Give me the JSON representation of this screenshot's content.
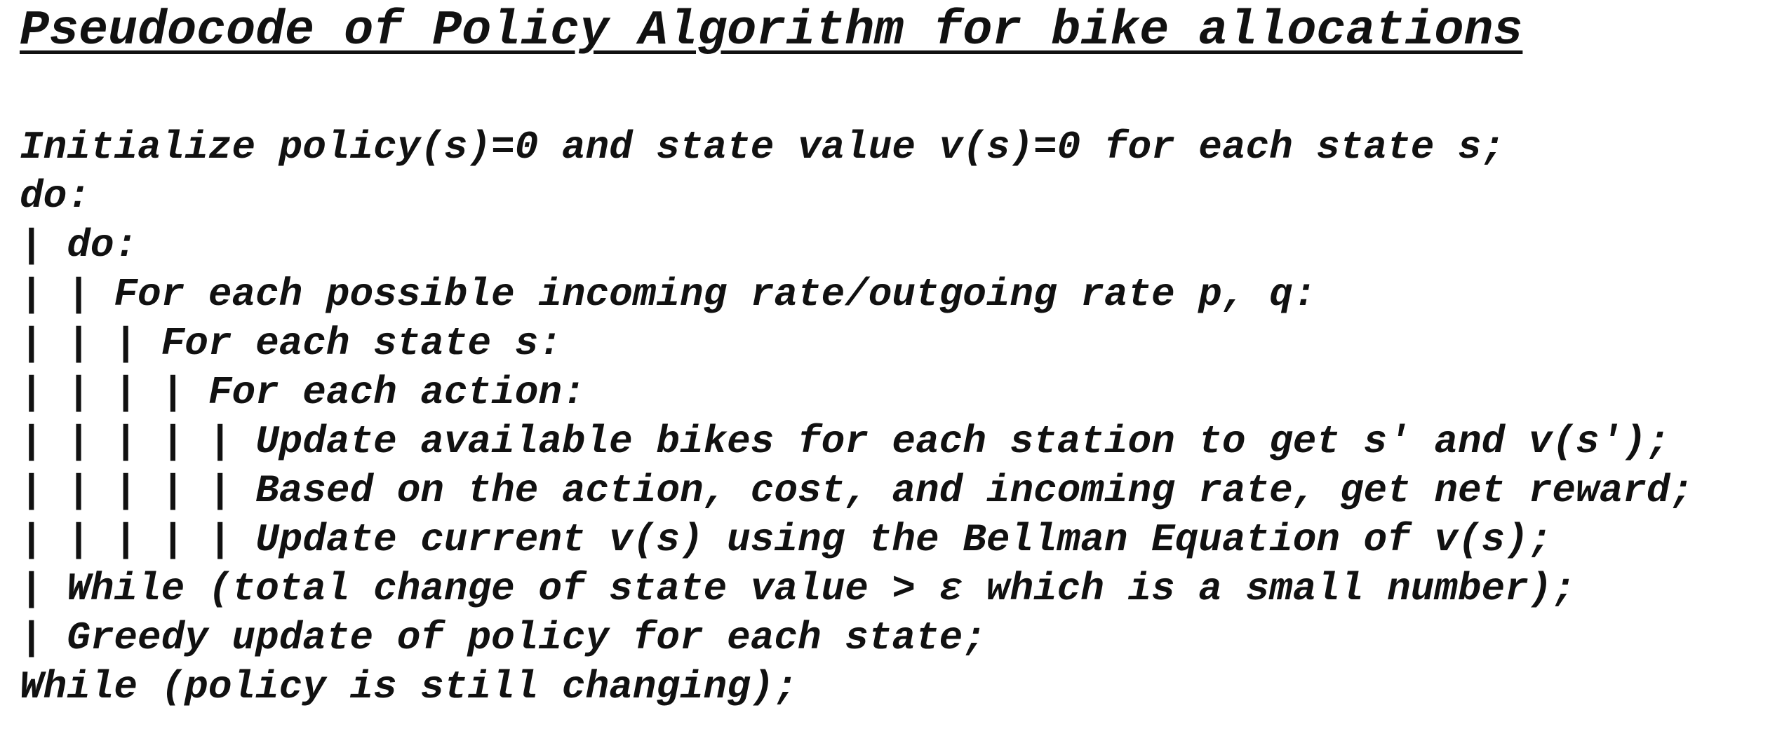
{
  "title": "Pseudocode of Policy Algorithm for bike allocations",
  "lines": [
    {
      "prefix": "",
      "text": "Initialize policy(s)=0 and state value v(s)=0 for each state s;"
    },
    {
      "prefix": "",
      "text": "do:"
    },
    {
      "prefix": "| ",
      "text": "do:"
    },
    {
      "prefix": "| | ",
      "text": "For each possible incoming rate/outgoing rate p, q:"
    },
    {
      "prefix": "| | | ",
      "text": "For each state s:"
    },
    {
      "prefix": "| | | | ",
      "text": "For each action:"
    },
    {
      "prefix": "| | | | | ",
      "text": "Update available bikes for each station to get s′ and v(s′);"
    },
    {
      "prefix": "| | | | | ",
      "text": "Based on the action, cost, and incoming rate, get net reward;"
    },
    {
      "prefix": "| | | | | ",
      "text": "Update current v(s) using the Bellman Equation of v(s);"
    },
    {
      "prefix": "| ",
      "text": "While (total change of state value > ε which is a small number);"
    },
    {
      "prefix": "| ",
      "text": "Greedy update of policy for each state;"
    },
    {
      "prefix": "",
      "text": "While (policy is still changing);"
    }
  ]
}
